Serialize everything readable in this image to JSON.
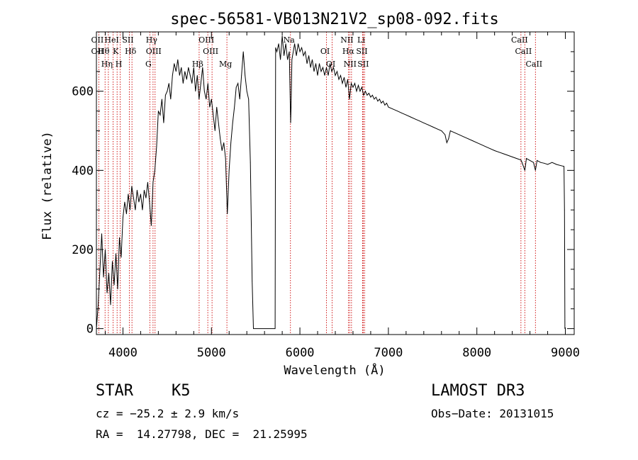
{
  "chart_data": {
    "type": "line",
    "title": "spec-56581-VB013N21V2_sp08-092.fits",
    "xlabel": "Wavelength (Å)",
    "ylabel": "Flux (relative)",
    "xlim": [
      3700,
      9100
    ],
    "ylim": [
      -15,
      750
    ],
    "x_ticks": [
      4000,
      5000,
      6000,
      7000,
      8000,
      9000
    ],
    "x_tick_labels": [
      "4000",
      "5000",
      "6000",
      "7000",
      "8000",
      "9000"
    ],
    "y_ticks": [
      0,
      200,
      400,
      600
    ],
    "y_tick_labels": [
      "0",
      "200",
      "400",
      "600"
    ],
    "grid": false,
    "line_color": "#000000",
    "marker_color": "#cc0000",
    "series": [
      {
        "name": "flux",
        "points": [
          [
            3700,
            0
          ],
          [
            3720,
            60
          ],
          [
            3740,
            150
          ],
          [
            3760,
            240
          ],
          [
            3780,
            130
          ],
          [
            3800,
            200
          ],
          [
            3820,
            90
          ],
          [
            3840,
            140
          ],
          [
            3860,
            60
          ],
          [
            3880,
            170
          ],
          [
            3900,
            110
          ],
          [
            3920,
            190
          ],
          [
            3940,
            100
          ],
          [
            3960,
            230
          ],
          [
            3980,
            180
          ],
          [
            4000,
            280
          ],
          [
            4020,
            320
          ],
          [
            4040,
            290
          ],
          [
            4060,
            340
          ],
          [
            4080,
            300
          ],
          [
            4100,
            360
          ],
          [
            4120,
            330
          ],
          [
            4140,
            300
          ],
          [
            4160,
            350
          ],
          [
            4180,
            320
          ],
          [
            4200,
            340
          ],
          [
            4220,
            300
          ],
          [
            4240,
            350
          ],
          [
            4260,
            330
          ],
          [
            4280,
            370
          ],
          [
            4300,
            320
          ],
          [
            4320,
            260
          ],
          [
            4340,
            370
          ],
          [
            4360,
            400
          ],
          [
            4380,
            460
          ],
          [
            4400,
            550
          ],
          [
            4420,
            540
          ],
          [
            4440,
            580
          ],
          [
            4460,
            520
          ],
          [
            4480,
            590
          ],
          [
            4500,
            600
          ],
          [
            4520,
            620
          ],
          [
            4540,
            580
          ],
          [
            4560,
            640
          ],
          [
            4580,
            670
          ],
          [
            4600,
            650
          ],
          [
            4620,
            680
          ],
          [
            4640,
            640
          ],
          [
            4660,
            660
          ],
          [
            4680,
            620
          ],
          [
            4700,
            650
          ],
          [
            4720,
            630
          ],
          [
            4740,
            660
          ],
          [
            4760,
            640
          ],
          [
            4780,
            620
          ],
          [
            4800,
            660
          ],
          [
            4820,
            600
          ],
          [
            4840,
            640
          ],
          [
            4860,
            580
          ],
          [
            4880,
            620
          ],
          [
            4900,
            660
          ],
          [
            4920,
            600
          ],
          [
            4940,
            580
          ],
          [
            4960,
            620
          ],
          [
            4980,
            560
          ],
          [
            5000,
            580
          ],
          [
            5020,
            540
          ],
          [
            5040,
            500
          ],
          [
            5060,
            560
          ],
          [
            5080,
            520
          ],
          [
            5100,
            480
          ],
          [
            5120,
            450
          ],
          [
            5140,
            470
          ],
          [
            5160,
            430
          ],
          [
            5180,
            290
          ],
          [
            5200,
            400
          ],
          [
            5220,
            470
          ],
          [
            5240,
            520
          ],
          [
            5260,
            560
          ],
          [
            5280,
            610
          ],
          [
            5300,
            620
          ],
          [
            5320,
            580
          ],
          [
            5340,
            640
          ],
          [
            5360,
            700
          ],
          [
            5380,
            640
          ],
          [
            5400,
            600
          ],
          [
            5420,
            580
          ],
          [
            5440,
            420
          ],
          [
            5460,
            120
          ],
          [
            5475,
            0
          ],
          [
            5720,
            0
          ],
          [
            5725,
            710
          ],
          [
            5740,
            700
          ],
          [
            5760,
            720
          ],
          [
            5780,
            680
          ],
          [
            5800,
            740
          ],
          [
            5820,
            690
          ],
          [
            5840,
            720
          ],
          [
            5860,
            680
          ],
          [
            5880,
            700
          ],
          [
            5895,
            520
          ],
          [
            5900,
            560
          ],
          [
            5910,
            680
          ],
          [
            5940,
            720
          ],
          [
            5960,
            690
          ],
          [
            5980,
            720
          ],
          [
            6000,
            700
          ],
          [
            6020,
            710
          ],
          [
            6040,
            690
          ],
          [
            6060,
            700
          ],
          [
            6080,
            670
          ],
          [
            6100,
            690
          ],
          [
            6120,
            660
          ],
          [
            6140,
            680
          ],
          [
            6160,
            650
          ],
          [
            6180,
            670
          ],
          [
            6200,
            640
          ],
          [
            6220,
            670
          ],
          [
            6240,
            650
          ],
          [
            6260,
            660
          ],
          [
            6280,
            640
          ],
          [
            6300,
            660
          ],
          [
            6320,
            640
          ],
          [
            6340,
            670
          ],
          [
            6360,
            650
          ],
          [
            6380,
            660
          ],
          [
            6400,
            640
          ],
          [
            6420,
            650
          ],
          [
            6440,
            630
          ],
          [
            6460,
            640
          ],
          [
            6480,
            620
          ],
          [
            6500,
            635
          ],
          [
            6520,
            610
          ],
          [
            6540,
            630
          ],
          [
            6560,
            580
          ],
          [
            6580,
            620
          ],
          [
            6600,
            610
          ],
          [
            6620,
            620
          ],
          [
            6640,
            600
          ],
          [
            6660,
            615
          ],
          [
            6680,
            600
          ],
          [
            6700,
            610
          ],
          [
            6720,
            590
          ],
          [
            6740,
            600
          ],
          [
            6760,
            590
          ],
          [
            6780,
            595
          ],
          [
            6800,
            585
          ],
          [
            6820,
            590
          ],
          [
            6840,
            580
          ],
          [
            6860,
            585
          ],
          [
            6880,
            575
          ],
          [
            6900,
            580
          ],
          [
            6920,
            570
          ],
          [
            6940,
            575
          ],
          [
            6960,
            565
          ],
          [
            6980,
            570
          ],
          [
            7000,
            560
          ],
          [
            7050,
            555
          ],
          [
            7100,
            550
          ],
          [
            7150,
            545
          ],
          [
            7200,
            540
          ],
          [
            7250,
            535
          ],
          [
            7300,
            530
          ],
          [
            7350,
            525
          ],
          [
            7400,
            520
          ],
          [
            7450,
            515
          ],
          [
            7500,
            510
          ],
          [
            7550,
            505
          ],
          [
            7600,
            500
          ],
          [
            7640,
            490
          ],
          [
            7660,
            470
          ],
          [
            7680,
            480
          ],
          [
            7700,
            500
          ],
          [
            7750,
            495
          ],
          [
            7800,
            490
          ],
          [
            7850,
            485
          ],
          [
            7900,
            480
          ],
          [
            7950,
            475
          ],
          [
            8000,
            470
          ],
          [
            8050,
            465
          ],
          [
            8100,
            460
          ],
          [
            8150,
            455
          ],
          [
            8200,
            450
          ],
          [
            8250,
            446
          ],
          [
            8300,
            442
          ],
          [
            8350,
            438
          ],
          [
            8400,
            434
          ],
          [
            8450,
            430
          ],
          [
            8498,
            426
          ],
          [
            8510,
            420
          ],
          [
            8542,
            400
          ],
          [
            8560,
            430
          ],
          [
            8600,
            425
          ],
          [
            8640,
            420
          ],
          [
            8662,
            400
          ],
          [
            8680,
            425
          ],
          [
            8720,
            420
          ],
          [
            8760,
            418
          ],
          [
            8800,
            415
          ],
          [
            8850,
            420
          ],
          [
            8900,
            415
          ],
          [
            8950,
            412
          ],
          [
            8985,
            410
          ],
          [
            8990,
            300
          ],
          [
            8995,
            0
          ]
        ]
      }
    ],
    "lines": [
      {
        "x": 3727,
        "labels": [
          "OII",
          "OII"
        ]
      },
      {
        "x": 3798,
        "labels": [
          "Hθ"
        ]
      },
      {
        "x": 3835,
        "labels": [
          "Hη"
        ]
      },
      {
        "x": 3889,
        "labels": [
          "HeI"
        ]
      },
      {
        "x": 3934,
        "labels": [
          "K"
        ]
      },
      {
        "x": 3969,
        "labels": [
          "H"
        ]
      },
      {
        "x": 4072,
        "labels": [
          "SII"
        ]
      },
      {
        "x": 4102,
        "labels": [
          "Hδ"
        ]
      },
      {
        "x": 4304,
        "labels": [
          "G"
        ]
      },
      {
        "x": 4340,
        "labels": [
          "Hγ"
        ]
      },
      {
        "x": 4363,
        "labels": [
          "OIII"
        ]
      },
      {
        "x": 4861,
        "labels": [
          "Hβ"
        ]
      },
      {
        "x": 4959,
        "labels": [
          "OIII"
        ]
      },
      {
        "x": 5007,
        "labels": [
          "OIII"
        ]
      },
      {
        "x": 5175,
        "labels": [
          "Mg"
        ]
      },
      {
        "x": 5893,
        "labels": [
          "Na"
        ]
      },
      {
        "x": 6300,
        "labels": [
          "OI"
        ]
      },
      {
        "x": 6364,
        "labels": [
          "OI"
        ]
      },
      {
        "x": 6548,
        "labels": [
          "NII"
        ]
      },
      {
        "x": 6563,
        "labels": [
          "Hα"
        ]
      },
      {
        "x": 6583,
        "labels": [
          "NII"
        ]
      },
      {
        "x": 6708,
        "labels": [
          "Li"
        ]
      },
      {
        "x": 6716,
        "labels": [
          "SII"
        ]
      },
      {
        "x": 6731,
        "labels": [
          "SII"
        ]
      },
      {
        "x": 8498,
        "labels": [
          "CaII"
        ]
      },
      {
        "x": 8542,
        "labels": [
          "CaII"
        ]
      },
      {
        "x": 8662,
        "labels": [
          "CaII"
        ]
      }
    ]
  },
  "info": {
    "object_class": "STAR",
    "subclass": "K5",
    "survey": "LAMOST DR3",
    "redshift": "cz = −25.2 ± 2.9 km/s",
    "obs_date": "Obs−Date: 20131015",
    "coords": "RA =  14.27798, DEC =  21.25995"
  }
}
